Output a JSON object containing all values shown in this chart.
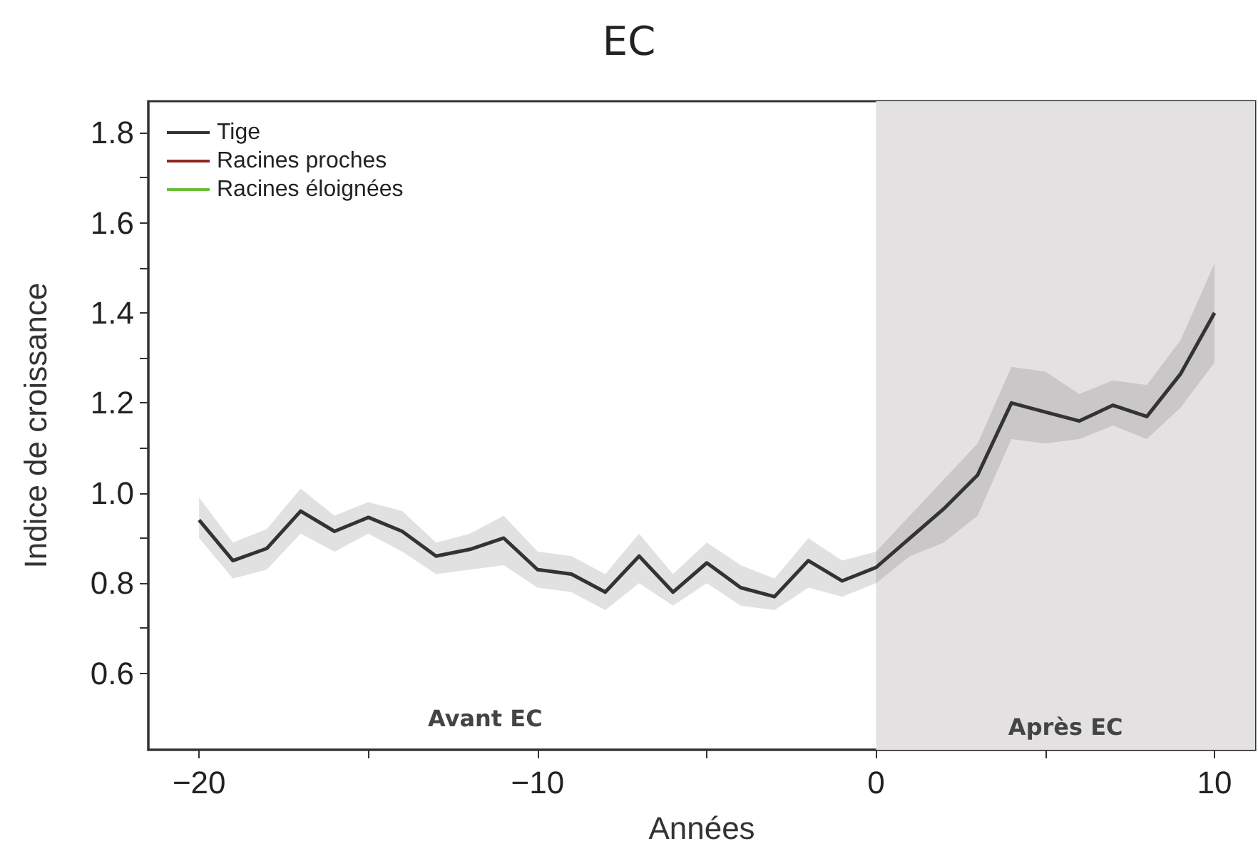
{
  "chart_data": {
    "type": "line",
    "title": "EC",
    "xlabel": "Années",
    "ylabel": "Indice de croissance",
    "x": [
      -20,
      -19,
      -18,
      -17,
      -16,
      -15,
      -14,
      -13,
      -12,
      -11,
      -10,
      -9,
      -8,
      -7,
      -6,
      -5,
      -4,
      -3,
      -2,
      -1,
      0,
      1,
      2,
      3,
      4,
      5,
      6,
      7,
      8,
      9,
      10
    ],
    "series": [
      {
        "name": "Tige",
        "color": "#333333",
        "values": [
          0.94,
          0.85,
          0.877,
          0.96,
          0.915,
          0.946,
          0.915,
          0.86,
          0.875,
          0.9,
          0.83,
          0.82,
          0.78,
          0.86,
          0.78,
          0.845,
          0.79,
          0.77,
          0.85,
          0.805,
          0.835,
          0.9,
          0.965,
          1.04,
          1.2,
          1.18,
          1.16,
          1.195,
          1.17,
          1.265,
          1.4
        ],
        "lower": [
          0.9,
          0.81,
          0.83,
          0.91,
          0.87,
          0.91,
          0.87,
          0.82,
          0.83,
          0.84,
          0.79,
          0.78,
          0.74,
          0.8,
          0.75,
          0.8,
          0.75,
          0.74,
          0.79,
          0.77,
          0.8,
          0.86,
          0.89,
          0.95,
          1.12,
          1.11,
          1.12,
          1.15,
          1.12,
          1.19,
          1.29
        ],
        "upper": [
          0.99,
          0.89,
          0.92,
          1.01,
          0.95,
          0.98,
          0.96,
          0.89,
          0.91,
          0.95,
          0.87,
          0.86,
          0.82,
          0.91,
          0.82,
          0.89,
          0.84,
          0.81,
          0.9,
          0.85,
          0.87,
          0.95,
          1.03,
          1.11,
          1.28,
          1.27,
          1.22,
          1.25,
          1.24,
          1.34,
          1.51
        ]
      },
      {
        "name": "Racines proches",
        "color": "#8b2a22",
        "values": [
          null,
          null,
          null,
          null,
          null,
          null,
          null,
          null,
          null,
          null,
          null,
          null,
          null,
          null,
          null,
          null,
          null,
          null,
          null,
          null,
          null,
          null,
          null,
          null,
          null,
          null,
          null,
          null,
          null,
          null,
          null
        ]
      },
      {
        "name": "Racines éloignées",
        "color": "#6abf3a",
        "values": [
          null,
          null,
          null,
          null,
          null,
          null,
          null,
          null,
          null,
          null,
          null,
          null,
          null,
          null,
          null,
          null,
          null,
          null,
          null,
          null,
          null,
          null,
          null,
          null,
          null,
          null,
          null,
          null,
          null,
          null,
          null
        ]
      }
    ],
    "xlim": [
      -21.5,
      11.2
    ],
    "xticks": [
      {
        "value": -20,
        "label": "−20"
      },
      {
        "value": -15,
        "label": null
      },
      {
        "value": -10,
        "label": "−10"
      },
      {
        "value": -5,
        "label": null
      },
      0,
      {
        "value": 5,
        "label": null
      },
      10
    ],
    "ylim": [
      0.43,
      1.87
    ],
    "yticks": [
      {
        "value": 0.6,
        "label": "0.6"
      },
      {
        "value": 0.7,
        "label": null
      },
      {
        "value": 0.8,
        "label": "0.8"
      },
      {
        "value": 0.9,
        "label": null
      },
      {
        "value": 1,
        "label": "1.0"
      },
      {
        "value": 1.1,
        "label": null
      },
      {
        "value": 1.2,
        "label": "1.2"
      },
      {
        "value": 1.3,
        "label": null
      },
      {
        "value": 1.4,
        "label": "1.4"
      },
      {
        "value": 1.5,
        "label": null
      },
      {
        "value": 1.6,
        "label": "1.6"
      },
      {
        "value": 1.7,
        "label": null
      },
      {
        "value": 1.8,
        "label": "1.8"
      }
    ],
    "bands": [
      {
        "axis": "x",
        "from": 0,
        "to": 11.2,
        "label": "Après EC",
        "color": "#e3e1e2"
      }
    ],
    "annotations": [
      "Avant EC"
    ],
    "grid": false,
    "legend": "top left",
    "marker": "none",
    "line_style": "solid"
  }
}
